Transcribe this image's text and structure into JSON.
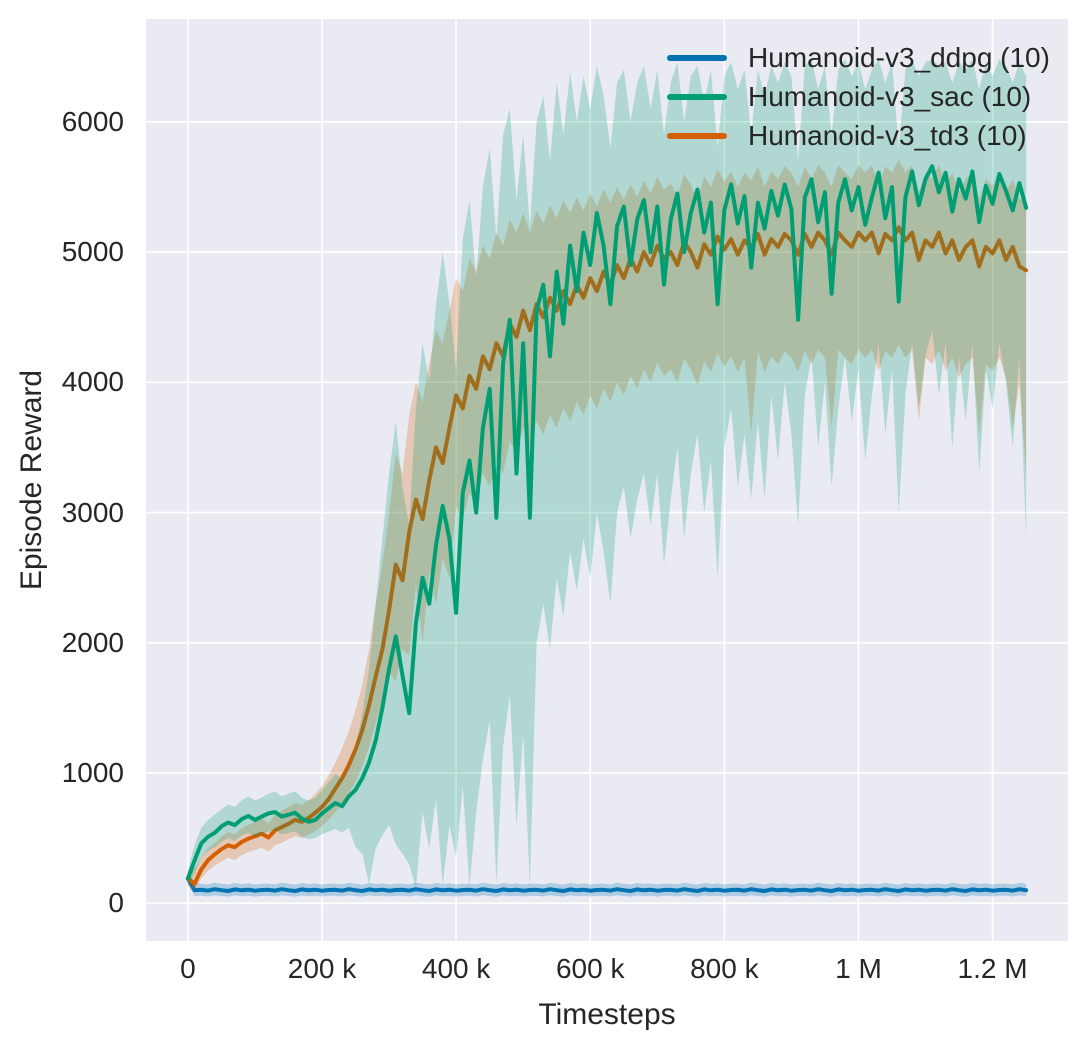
{
  "figure": {
    "background": "#ffffff",
    "axes_background": "#eaeaf2",
    "grid_color": "#ffffff",
    "text_color": "#262626"
  },
  "chart_data": {
    "type": "line",
    "title": "",
    "xlabel": "Timesteps",
    "ylabel": "Episode Reward",
    "grid": true,
    "legend_position": "upper right",
    "x_unit": "thousands of timesteps",
    "xlim_k": [
      -62.5,
      1312.5
    ],
    "ylim": [
      -290,
      6790
    ],
    "xticks": [
      {
        "value_k": 0,
        "label": "0"
      },
      {
        "value_k": 200,
        "label": "200 k"
      },
      {
        "value_k": 400,
        "label": "400 k"
      },
      {
        "value_k": 600,
        "label": "600 k"
      },
      {
        "value_k": 800,
        "label": "800 k"
      },
      {
        "value_k": 1000,
        "label": "1 M"
      },
      {
        "value_k": 1200,
        "label": "1.2 M"
      }
    ],
    "yticks": [
      {
        "value": 0,
        "label": "0"
      },
      {
        "value": 1000,
        "label": "1000"
      },
      {
        "value": 2000,
        "label": "2000"
      },
      {
        "value": 3000,
        "label": "3000"
      },
      {
        "value": 4000,
        "label": "4000"
      },
      {
        "value": 5000,
        "label": "5000"
      },
      {
        "value": 6000,
        "label": "6000"
      }
    ],
    "series": [
      {
        "name": "Humanoid-v3_ddpg (10)",
        "color": "#0173b2",
        "band_opacity": 0.25,
        "line_width": 4,
        "draw_order": 1,
        "x_start_k": 0,
        "x_step_k": 10,
        "mean": [
          190,
          100,
          103,
          97,
          108,
          100,
          94,
          106,
          99,
          104,
          96,
          102,
          103,
          97,
          108,
          100,
          94,
          106,
          99,
          104,
          96,
          102,
          103,
          97,
          108,
          100,
          94,
          106,
          99,
          104,
          96,
          102,
          103,
          97,
          108,
          100,
          94,
          106,
          99,
          104,
          96,
          102,
          103,
          97,
          108,
          100,
          94,
          106,
          99,
          104,
          96,
          102,
          103,
          97,
          108,
          100,
          94,
          106,
          99,
          104,
          96,
          102,
          103,
          97,
          108,
          100,
          94,
          106,
          99,
          104,
          96,
          102,
          103,
          97,
          108,
          100,
          94,
          106,
          99,
          104,
          96,
          102,
          103,
          97,
          108,
          100,
          94,
          106,
          99,
          104,
          96,
          102,
          103,
          97,
          108,
          100,
          94,
          106,
          99,
          104,
          96,
          102,
          103,
          97,
          108,
          100,
          94,
          106,
          99,
          104,
          96,
          102,
          103,
          97,
          108,
          100,
          94,
          106,
          99,
          104,
          96,
          102,
          103,
          97,
          108,
          100
        ],
        "band_low": [
          140,
          55,
          57,
          52,
          62,
          55,
          50,
          60,
          54,
          58,
          51,
          56,
          57,
          52,
          62,
          55,
          50,
          60,
          54,
          58,
          51,
          56,
          57,
          52,
          62,
          55,
          50,
          60,
          54,
          58,
          51,
          56,
          57,
          52,
          62,
          55,
          50,
          60,
          54,
          58,
          51,
          56,
          57,
          52,
          62,
          55,
          50,
          60,
          54,
          58,
          51,
          56,
          57,
          52,
          62,
          55,
          50,
          60,
          54,
          58,
          51,
          56,
          57,
          52,
          62,
          55,
          50,
          60,
          54,
          58,
          51,
          56,
          57,
          52,
          62,
          55,
          50,
          60,
          54,
          58,
          51,
          56,
          57,
          52,
          62,
          55,
          50,
          60,
          54,
          58,
          51,
          56,
          57,
          52,
          62,
          55,
          50,
          60,
          54,
          58,
          51,
          56,
          57,
          52,
          62,
          55,
          50,
          60,
          54,
          58,
          51,
          56,
          57,
          52,
          62,
          55,
          50,
          60,
          54,
          58,
          51,
          56,
          57,
          52,
          62,
          55
        ],
        "band_high": [
          250,
          155,
          150,
          145,
          157,
          149,
          143,
          155,
          148,
          152,
          144,
          150,
          150,
          145,
          157,
          149,
          143,
          155,
          148,
          152,
          144,
          150,
          150,
          145,
          157,
          149,
          143,
          155,
          148,
          152,
          144,
          150,
          150,
          145,
          157,
          149,
          143,
          155,
          148,
          152,
          144,
          150,
          150,
          145,
          157,
          149,
          143,
          155,
          148,
          152,
          144,
          150,
          150,
          145,
          157,
          149,
          143,
          155,
          148,
          152,
          144,
          150,
          150,
          145,
          157,
          149,
          143,
          155,
          148,
          152,
          144,
          150,
          150,
          145,
          157,
          149,
          143,
          155,
          148,
          152,
          144,
          150,
          150,
          145,
          157,
          149,
          143,
          155,
          148,
          152,
          144,
          150,
          150,
          145,
          157,
          149,
          143,
          155,
          148,
          152,
          144,
          150,
          150,
          145,
          157,
          149,
          143,
          155,
          148,
          152,
          144,
          150,
          150,
          145,
          157,
          149,
          143,
          155,
          148,
          152,
          144,
          150,
          150,
          145,
          157,
          149
        ]
      },
      {
        "name": "Humanoid-v3_sac (10)",
        "color": "#029e73",
        "band_opacity": 0.25,
        "line_width": 4,
        "draw_order": 3,
        "x_start_k": 0,
        "x_step_k": 10,
        "mean": [
          190,
          330,
          460,
          510,
          540,
          590,
          620,
          600,
          645,
          670,
          640,
          665,
          690,
          700,
          665,
          680,
          695,
          650,
          625,
          640,
          690,
          730,
          770,
          745,
          820,
          870,
          960,
          1080,
          1250,
          1500,
          1800,
          2050,
          1750,
          1460,
          2150,
          2500,
          2300,
          2750,
          3050,
          2800,
          2230,
          3150,
          3400,
          3000,
          3650,
          3950,
          2960,
          4150,
          4480,
          3300,
          4300,
          2960,
          4550,
          4750,
          4200,
          4850,
          4450,
          5050,
          4700,
          5150,
          4900,
          5300,
          5050,
          4600,
          5200,
          5350,
          4900,
          5250,
          5400,
          5000,
          5350,
          4750,
          5250,
          5450,
          5000,
          5300,
          5480,
          5150,
          5380,
          4600,
          5320,
          5520,
          5220,
          5430,
          4880,
          5380,
          5180,
          5470,
          5280,
          5520,
          5330,
          4480,
          5420,
          5560,
          5230,
          5460,
          4680,
          5380,
          5560,
          5320,
          5500,
          5210,
          5420,
          5610,
          5260,
          5500,
          4620,
          5420,
          5620,
          5360,
          5560,
          5660,
          5460,
          5610,
          5310,
          5560,
          5410,
          5620,
          5230,
          5510,
          5370,
          5600,
          5470,
          5320,
          5530,
          5340
        ],
        "band_low": [
          130,
          230,
          350,
          400,
          430,
          470,
          500,
          480,
          520,
          540,
          510,
          530,
          550,
          560,
          530,
          540,
          550,
          510,
          490,
          500,
          530,
          550,
          570,
          540,
          580,
          430,
          380,
          150,
          420,
          520,
          600,
          450,
          380,
          300,
          120,
          700,
          420,
          800,
          140,
          600,
          350,
          900,
          130,
          700,
          1100,
          1400,
          150,
          1200,
          1600,
          600,
          1300,
          130,
          2000,
          2300,
          1950,
          2500,
          2200,
          2700,
          2400,
          2800,
          2500,
          3000,
          2700,
          2300,
          3000,
          3200,
          2800,
          3100,
          3300,
          2900,
          3300,
          2600,
          3100,
          3500,
          2800,
          3300,
          3600,
          3000,
          3400,
          2500,
          3500,
          3800,
          3200,
          3600,
          3100,
          3700,
          3100,
          3900,
          3400,
          4000,
          3600,
          2900,
          3900,
          4200,
          3500,
          4000,
          3200,
          3800,
          4200,
          3700,
          4100,
          3400,
          3900,
          4300,
          3600,
          4100,
          3000,
          3900,
          4300,
          3800,
          4200,
          4400,
          3900,
          4300,
          3500,
          4200,
          3700,
          4300,
          3300,
          4100,
          3800,
          4300,
          4000,
          3500,
          4200,
          2800
        ],
        "band_high": [
          250,
          450,
          580,
          640,
          680,
          720,
          760,
          740,
          790,
          820,
          790,
          810,
          840,
          860,
          820,
          840,
          860,
          810,
          790,
          810,
          870,
          930,
          990,
          960,
          1060,
          1200,
          1450,
          1800,
          2300,
          2800,
          3300,
          3700,
          3200,
          2900,
          3800,
          4300,
          4000,
          4600,
          5000,
          4600,
          4100,
          5100,
          5400,
          4800,
          5500,
          5800,
          5100,
          5900,
          6100,
          5400,
          5900,
          5200,
          6000,
          6200,
          5700,
          6300,
          5900,
          6380,
          6000,
          6350,
          6100,
          6430,
          6200,
          5800,
          6300,
          6400,
          6000,
          6300,
          6430,
          6100,
          6400,
          5900,
          6300,
          6460,
          6000,
          6350,
          6430,
          6150,
          6400,
          5800,
          6350,
          6460,
          6250,
          6400,
          5900,
          6400,
          6200,
          6430,
          6300,
          6460,
          6350,
          5700,
          6430,
          6480,
          6250,
          6430,
          5900,
          6400,
          6480,
          6350,
          6460,
          6250,
          6400,
          6480,
          6300,
          6460,
          5800,
          6400,
          6480,
          6350,
          6460,
          6480,
          6430,
          6460,
          6300,
          6460,
          6400,
          6480,
          6250,
          6460,
          6350,
          6480,
          6430,
          6300,
          6460,
          6350
        ]
      },
      {
        "name": "Humanoid-v3_td3 (10)",
        "color": "#d55e00",
        "band_opacity": 0.25,
        "line_width": 4,
        "draw_order": 2,
        "x_start_k": 0,
        "x_step_k": 10,
        "mean": [
          190,
          150,
          260,
          330,
          375,
          415,
          445,
          430,
          470,
          495,
          515,
          535,
          505,
          560,
          585,
          610,
          640,
          625,
          655,
          695,
          740,
          800,
          880,
          960,
          1060,
          1180,
          1330,
          1520,
          1740,
          1950,
          2250,
          2600,
          2480,
          2850,
          3100,
          2950,
          3250,
          3500,
          3380,
          3650,
          3900,
          3800,
          4050,
          3950,
          4200,
          4100,
          4300,
          4200,
          4450,
          4350,
          4550,
          4400,
          4600,
          4500,
          4650,
          4550,
          4700,
          4600,
          4750,
          4650,
          4800,
          4700,
          4850,
          4750,
          4900,
          4800,
          4950,
          4850,
          5000,
          4900,
          5050,
          4950,
          5000,
          4900,
          5080,
          5000,
          4880,
          5060,
          4980,
          5120,
          5020,
          5100,
          4980,
          5090,
          5030,
          5140,
          4980,
          5100,
          5040,
          5140,
          5090,
          4980,
          5140,
          5040,
          5150,
          5090,
          4980,
          5150,
          5090,
          5040,
          5150,
          5090,
          5150,
          4990,
          5140,
          5090,
          5190,
          5090,
          5150,
          4940,
          5090,
          5040,
          5150,
          4990,
          5090,
          4940,
          5040,
          5090,
          4890,
          5040,
          4990,
          5090,
          4940,
          5040,
          4890,
          4860
        ],
        "band_low": [
          140,
          100,
          190,
          250,
          290,
          320,
          350,
          330,
          370,
          390,
          410,
          425,
          395,
          445,
          465,
          490,
          515,
          500,
          525,
          555,
          590,
          640,
          700,
          760,
          840,
          930,
          1050,
          1200,
          1380,
          1550,
          1780,
          1700,
          1950,
          1900,
          2450,
          2000,
          2550,
          2300,
          2650,
          2500,
          3050,
          2950,
          3150,
          3050,
          3300,
          3200,
          3400,
          3300,
          3550,
          3450,
          3650,
          3500,
          3700,
          3600,
          3750,
          3650,
          3800,
          3700,
          3850,
          3750,
          3900,
          3800,
          3950,
          3850,
          4000,
          3900,
          4050,
          3950,
          4100,
          4000,
          4150,
          4050,
          4100,
          4000,
          4180,
          4100,
          3980,
          4160,
          4080,
          4220,
          4120,
          4200,
          4080,
          4190,
          3600,
          4240,
          4080,
          4200,
          4140,
          4240,
          4190,
          4080,
          4240,
          4140,
          4250,
          4190,
          3650,
          4250,
          4190,
          4140,
          4250,
          4190,
          4250,
          4090,
          4240,
          4190,
          4290,
          4190,
          4250,
          3700,
          4190,
          4140,
          4250,
          4090,
          4190,
          4040,
          4140,
          4190,
          3600,
          4140,
          4090,
          4190,
          4040,
          3650,
          3990,
          3300
        ],
        "band_high": [
          240,
          270,
          350,
          420,
          460,
          510,
          545,
          530,
          575,
          600,
          625,
          650,
          615,
          680,
          710,
          740,
          770,
          755,
          790,
          840,
          900,
          980,
          1080,
          1190,
          1320,
          1480,
          1680,
          1950,
          2300,
          2600,
          3000,
          3450,
          3300,
          3750,
          4000,
          3850,
          4150,
          4400,
          4300,
          4550,
          4800,
          4700,
          4950,
          4850,
          5050,
          4950,
          5150,
          5050,
          5250,
          5150,
          5300,
          5150,
          5320,
          5220,
          5360,
          5260,
          5400,
          5300,
          5420,
          5320,
          5450,
          5350,
          5480,
          5380,
          5500,
          5400,
          5520,
          5420,
          5550,
          5450,
          5580,
          5480,
          5530,
          5430,
          5600,
          5520,
          5400,
          5580,
          5500,
          5640,
          5540,
          5620,
          5500,
          5610,
          5550,
          5660,
          5500,
          5620,
          5560,
          5660,
          5610,
          5500,
          5660,
          5560,
          5670,
          5610,
          5500,
          5670,
          5610,
          5560,
          5670,
          5610,
          5670,
          5510,
          5660,
          5610,
          5710,
          5610,
          5670,
          5460,
          5610,
          5560,
          5670,
          5510,
          5610,
          5460,
          5560,
          5610,
          5410,
          5560,
          5510,
          5610,
          5460,
          5560,
          5410,
          5380
        ]
      }
    ]
  }
}
